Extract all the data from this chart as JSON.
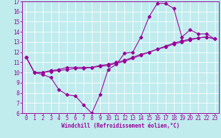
{
  "xlabel": "Windchill (Refroidissement éolien,°C)",
  "bg_color": "#c0ecee",
  "line_color": "#990099",
  "grid_color": "#ffffff",
  "xlim": [
    -0.5,
    23.5
  ],
  "ylim": [
    6,
    17
  ],
  "xticks": [
    0,
    1,
    2,
    3,
    4,
    5,
    6,
    7,
    8,
    9,
    10,
    11,
    12,
    13,
    14,
    15,
    16,
    17,
    18,
    19,
    20,
    21,
    22,
    23
  ],
  "yticks": [
    6,
    7,
    8,
    9,
    10,
    11,
    12,
    13,
    14,
    15,
    16,
    17
  ],
  "line1_x": [
    0,
    1,
    2,
    3,
    4,
    5,
    6,
    7,
    8,
    9,
    10,
    11,
    12,
    13,
    14,
    15,
    16,
    17,
    18,
    19,
    20,
    21,
    22,
    23
  ],
  "line1_y": [
    11.5,
    10.0,
    9.8,
    9.5,
    8.3,
    7.8,
    7.7,
    6.8,
    6.0,
    7.8,
    10.3,
    10.8,
    11.9,
    12.0,
    13.5,
    15.5,
    16.8,
    16.8,
    16.3,
    13.5,
    14.2,
    13.8,
    13.8,
    13.3
  ],
  "line2_x": [
    0,
    1,
    2,
    3,
    4,
    5,
    6,
    7,
    8,
    9,
    10,
    11,
    12,
    13,
    14,
    15,
    16,
    17,
    18,
    19,
    20,
    21,
    22,
    23
  ],
  "line2_y": [
    11.5,
    10.0,
    10.0,
    10.2,
    10.3,
    10.5,
    10.5,
    10.5,
    10.5,
    10.7,
    10.8,
    11.0,
    11.2,
    11.5,
    11.8,
    12.0,
    12.3,
    12.5,
    12.8,
    13.0,
    13.2,
    13.4,
    13.5,
    13.3
  ],
  "line3_x": [
    0,
    1,
    2,
    3,
    4,
    5,
    6,
    7,
    8,
    9,
    10,
    11,
    12,
    13,
    14,
    15,
    16,
    17,
    18,
    19,
    20,
    21,
    22,
    23
  ],
  "line3_y": [
    11.5,
    10.0,
    10.0,
    10.1,
    10.2,
    10.3,
    10.4,
    10.4,
    10.5,
    10.6,
    10.7,
    10.9,
    11.1,
    11.4,
    11.7,
    12.0,
    12.3,
    12.6,
    12.9,
    13.1,
    13.3,
    13.4,
    13.5,
    13.3
  ],
  "tick_fontsize": 5.5,
  "label_fontsize": 5.5
}
